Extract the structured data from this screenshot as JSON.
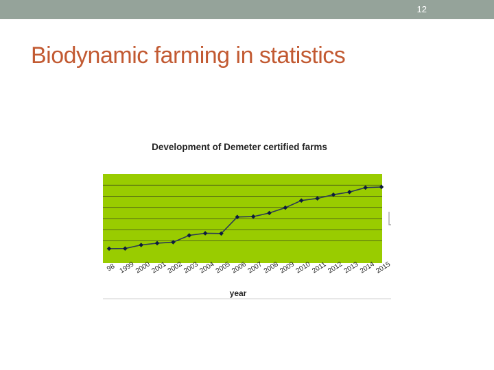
{
  "slide": {
    "number": "12",
    "title": "Biodynamic farming in statistics"
  },
  "colors": {
    "top_bar": "#95a39a",
    "title": "#c25a32",
    "plot_background": "#99cc00",
    "line": "#2b3a55",
    "marker": "#0d1b3e",
    "gridline": "#3d4a1a"
  },
  "chart_data": {
    "type": "line",
    "title": "Development of Demeter certified farms",
    "xlabel": "year",
    "ylabel": "",
    "categories": [
      "1998",
      "1999",
      "2000",
      "2001",
      "2002",
      "2003",
      "2004",
      "2005",
      "2006",
      "2007",
      "2008",
      "2009",
      "2010",
      "2011",
      "2012",
      "2013",
      "2014",
      "2015"
    ],
    "tick_labels": [
      "98",
      "1999",
      "2000",
      "2001",
      "2002",
      "2003",
      "2004",
      "2005",
      "2006",
      "2007",
      "2008",
      "2009",
      "2010",
      "2011",
      "2012",
      "2013",
      "2014",
      "2015"
    ],
    "values": [
      0.3,
      0.31,
      0.63,
      0.79,
      0.88,
      1.49,
      1.68,
      1.66,
      3.14,
      3.18,
      3.5,
      3.98,
      4.62,
      4.81,
      5.14,
      5.38,
      5.78,
      5.84
    ],
    "ylim": [
      -1,
      7
    ],
    "y_ticks_gridlines": [
      1,
      2,
      3,
      4,
      5,
      6
    ],
    "y_tick_labels_visible": false,
    "grid": true,
    "legend": "none"
  }
}
